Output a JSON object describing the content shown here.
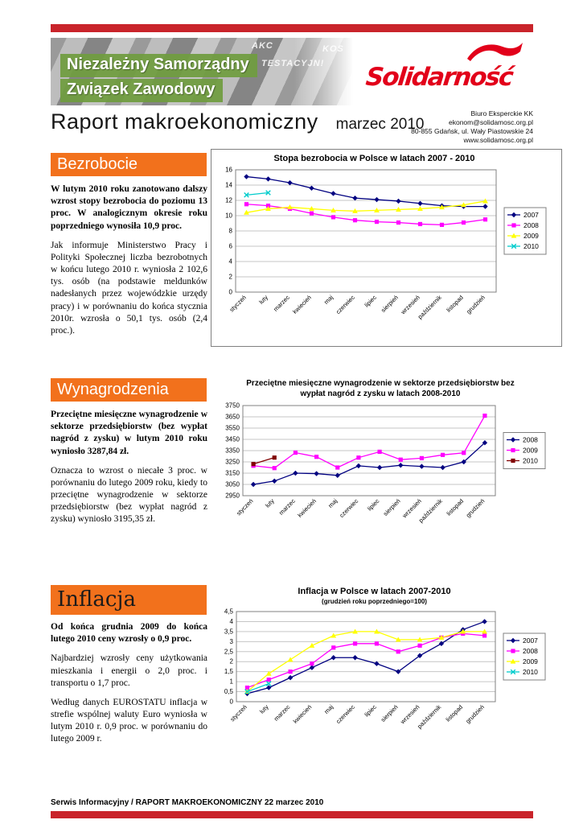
{
  "colors": {
    "red": "#C9242B",
    "orange": "#F2711C",
    "green": "#6F9C3F",
    "logo_red": "#E2001A"
  },
  "header": {
    "union_line1": "Niezależny Samorządny",
    "union_line2": "Związek Zawodowy",
    "banner_fragments": [
      "AKC",
      "TESTACYJN!",
      "KOS"
    ],
    "logo_text": "Solidarność",
    "title": "Raport makroekonomiczny",
    "date": "marzec 2010",
    "contact": {
      "line1": "Biuro Eksperckie KK",
      "line2": "ekonom@solidamosc.org.pl",
      "line3": "80-855 Gdańsk, ul. Wały Piastowskie 24",
      "line4": "www.solidamosc.org.pl"
    }
  },
  "sections": [
    {
      "heading": "Bezrobocie",
      "paragraphs": [
        "W lutym 2010 roku zanotowano dalszy wzrost stopy bezrobocia do poziomu 13 proc. W analogicznym okresie roku poprzedniego wynosiła 10,9 proc.",
        "Jak informuje Ministerstwo Pracy i Polityki Społecznej liczba bezrobotnych w końcu lutego 2010 r. wyniosła 2 102,6 tys. osób (na podstawie meldunków nadesłanych przez wojewódzkie urzędy pracy) i w porównaniu do końca stycznia 2010r. wzrosła o  50,1 tys. osób (2,4  proc.)."
      ]
    },
    {
      "heading": "Wynagrodzenia",
      "paragraphs": [
        "Przeciętne miesięczne wynagrodzenie w sektorze przedsiębiorstw (bez wypłat nagród z zysku) w lutym 2010 roku wyniosło 3287,84 zł.",
        "Oznacza to wzrost o niecałe 3 proc. w porównaniu do lutego 2009 roku, kiedy to przeciętne wynagrodzenie w sektorze przedsiębiorstw (bez wypłat nagród z zysku) wyniosło 3195,35 zł."
      ]
    },
    {
      "heading": "Inflacja",
      "paragraphs": [
        "Od końca grudnia 2009 do końca lutego 2010 ceny wzrosły o 0,9 proc.",
        "Najbardziej wzrosły ceny użytkowania mieszkania i energii o 2,0 proc. i transportu o 1,7 proc.",
        "Według danych EUROSTATU inflacja w strefie wspólnej waluty Euro wyniosła w lutym 2010 r. 0,9 proc. w porównaniu do lutego 2009 r."
      ]
    }
  ],
  "footer": {
    "text": "Serwis Informacyjny / RAPORT MAKROEKONOMICZNY  22 marzec 2010"
  },
  "chart_data": [
    {
      "type": "line",
      "title": "Stopa bezrobocia w Polsce w latach 2007 - 2010",
      "categories": [
        "styczeń",
        "luty",
        "marzec",
        "kwiecień",
        "maj",
        "czerwiec",
        "lipiec",
        "sierpień",
        "wrzesień",
        "październik",
        "listopad",
        "grudzień"
      ],
      "ylim": [
        0,
        16
      ],
      "ytick": 2,
      "decimal_comma": false,
      "grid": true,
      "legend_position": "right",
      "series": [
        {
          "name": "2007",
          "color": "#000080",
          "marker": "diamond",
          "values": [
            15.1,
            14.8,
            14.3,
            13.6,
            12.9,
            12.3,
            12.1,
            11.9,
            11.6,
            11.3,
            11.2,
            11.2
          ]
        },
        {
          "name": "2008",
          "color": "#FF00FF",
          "marker": "square",
          "values": [
            11.5,
            11.3,
            10.9,
            10.3,
            9.8,
            9.4,
            9.2,
            9.1,
            8.9,
            8.8,
            9.1,
            9.5
          ]
        },
        {
          "name": "2009",
          "color": "#FFFF00",
          "marker": "triangle",
          "values": [
            10.4,
            10.9,
            11.1,
            10.9,
            10.7,
            10.6,
            10.7,
            10.8,
            10.9,
            11.1,
            11.4,
            11.9
          ]
        },
        {
          "name": "2010",
          "color": "#00CCCC",
          "marker": "x",
          "values": [
            12.7,
            13.0,
            null,
            null,
            null,
            null,
            null,
            null,
            null,
            null,
            null,
            null
          ]
        }
      ]
    },
    {
      "type": "line",
      "title": "Przeciętne miesięczne wynagrodzenie w sektorze przedsiębiorstw bez wypłat nagród z zysku w latach 2008-2010",
      "categories": [
        "styczeń",
        "luty",
        "marzec",
        "kwiecień",
        "maj",
        "czerwiec",
        "lipiec",
        "sierpień",
        "wrzesień",
        "październik",
        "listopad",
        "grudzień"
      ],
      "ylim": [
        2950,
        3750
      ],
      "ytick": 100,
      "decimal_comma": false,
      "grid": true,
      "legend_position": "right",
      "series": [
        {
          "name": "2008",
          "color": "#000080",
          "marker": "diamond",
          "values": [
            3050,
            3080,
            3150,
            3146,
            3130,
            3215,
            3200,
            3220,
            3210,
            3200,
            3250,
            3420
          ]
        },
        {
          "name": "2009",
          "color": "#FF00FF",
          "marker": "square",
          "values": [
            3216,
            3195,
            3332,
            3295,
            3200,
            3288,
            3340,
            3270,
            3283,
            3312,
            3330,
            3660
          ]
        },
        {
          "name": "2010",
          "color": "#800000",
          "marker": "square",
          "values": [
            3231,
            3288,
            null,
            null,
            null,
            null,
            null,
            null,
            null,
            null,
            null,
            null
          ]
        }
      ]
    },
    {
      "type": "line",
      "title": "Inflacja w Polsce w latach 2007-2010",
      "subtitle": "(grudzień roku poprzedniego=100)",
      "categories": [
        "styczeń",
        "luty",
        "marzec",
        "kwiecień",
        "maj",
        "czerwiec",
        "lipiec",
        "sierpień",
        "wrzesień",
        "październik",
        "listopad",
        "grudzień"
      ],
      "ylim": [
        0,
        4.5
      ],
      "ytick": 0.5,
      "decimal_comma": true,
      "grid": true,
      "legend_position": "right",
      "series": [
        {
          "name": "2007",
          "color": "#000080",
          "marker": "diamond",
          "values": [
            0.4,
            0.7,
            1.2,
            1.7,
            2.2,
            2.2,
            1.9,
            1.5,
            2.3,
            2.9,
            3.6,
            4.0
          ]
        },
        {
          "name": "2008",
          "color": "#FF00FF",
          "marker": "square",
          "values": [
            0.7,
            1.1,
            1.5,
            1.9,
            2.7,
            2.9,
            2.9,
            2.5,
            2.8,
            3.2,
            3.4,
            3.3
          ]
        },
        {
          "name": "2009",
          "color": "#FFFF00",
          "marker": "triangle",
          "values": [
            0.5,
            1.4,
            2.1,
            2.8,
            3.3,
            3.5,
            3.5,
            3.1,
            3.1,
            3.2,
            3.5,
            3.5
          ]
        },
        {
          "name": "2010",
          "color": "#00CCCC",
          "marker": "x",
          "values": [
            0.5,
            0.9,
            null,
            null,
            null,
            null,
            null,
            null,
            null,
            null,
            null,
            null
          ]
        }
      ]
    }
  ]
}
